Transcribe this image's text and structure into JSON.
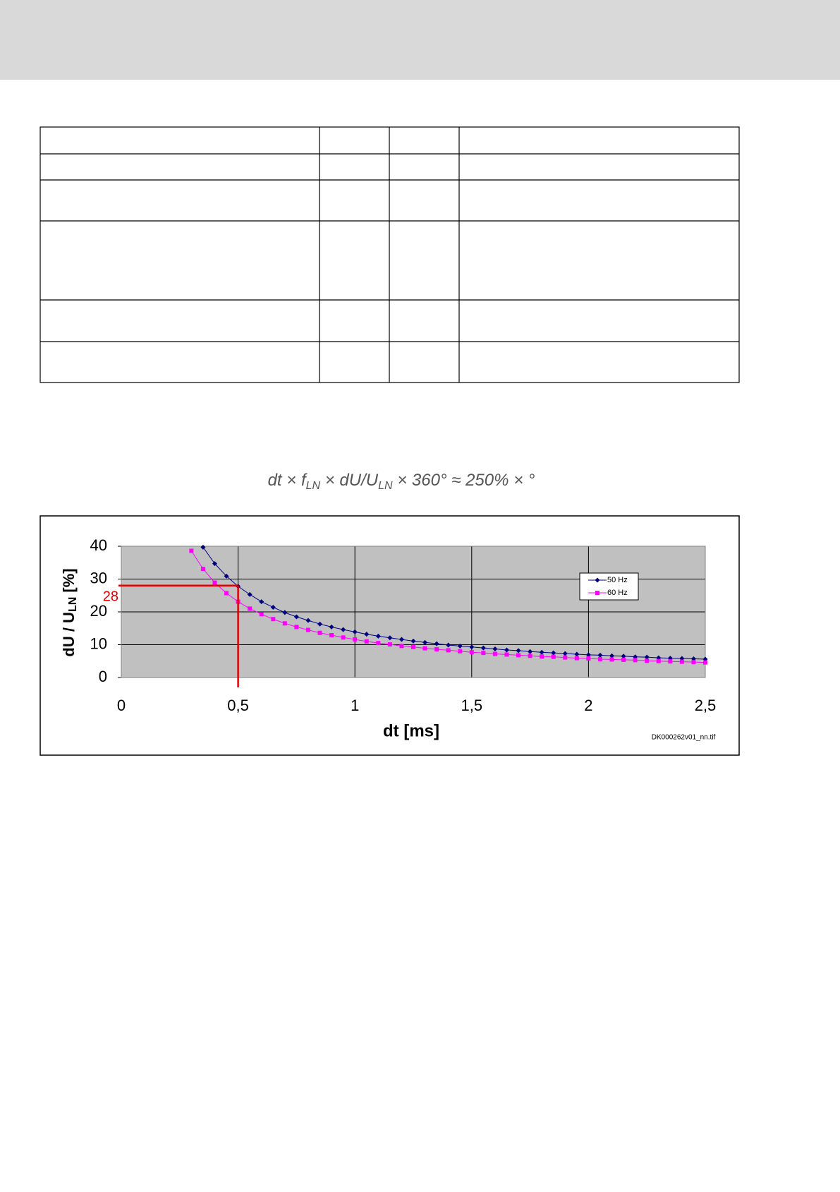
{
  "formula": {
    "parts": [
      "dt × f",
      "LN",
      " × dU/U",
      "LN",
      " × 360° ≈ 250% × °"
    ]
  },
  "chart_data": {
    "type": "line",
    "ylabel": {
      "main": "dU / U",
      "sub": "LN",
      "unit": " [%]"
    },
    "xlabel": "dt [ms]",
    "credit": "DK000262v01_nn.tif",
    "xlim": [
      0,
      2.5
    ],
    "ylim": [
      0,
      40
    ],
    "xticks": [
      0,
      {
        "value": 0.5,
        "label": "0,5"
      },
      1,
      {
        "value": 1.5,
        "label": "1,5"
      },
      2,
      {
        "value": 2.5,
        "label": "2,5"
      }
    ],
    "yticks": [
      0,
      10,
      20,
      30,
      40
    ],
    "grid": true,
    "legend": "upper right",
    "background": "#c0c0c0",
    "marker": {
      "x": 0.5,
      "y": 28,
      "color": "#e00000"
    },
    "series": [
      {
        "name": "50 Hz",
        "color": "#000080",
        "x": [
          0.35,
          0.4,
          0.45,
          0.5,
          0.55,
          0.6,
          0.65,
          0.7,
          0.75,
          0.8,
          0.85,
          0.9,
          0.95,
          1.0,
          1.05,
          1.1,
          1.15,
          1.2,
          1.25,
          1.3,
          1.35,
          1.4,
          1.45,
          1.5,
          1.55,
          1.6,
          1.65,
          1.7,
          1.75,
          1.8,
          1.85,
          1.9,
          1.95,
          2.0,
          2.05,
          2.1,
          2.15,
          2.2,
          2.25,
          2.3,
          2.35,
          2.4,
          2.45,
          2.5
        ],
        "values": [
          39.7,
          34.7,
          30.9,
          27.8,
          25.3,
          23.1,
          21.4,
          19.8,
          18.5,
          17.4,
          16.3,
          15.4,
          14.6,
          13.9,
          13.2,
          12.6,
          12.1,
          11.6,
          11.1,
          10.7,
          10.3,
          9.9,
          9.6,
          9.3,
          9.0,
          8.7,
          8.4,
          8.2,
          7.9,
          7.7,
          7.5,
          7.3,
          7.1,
          6.9,
          6.8,
          6.6,
          6.5,
          6.3,
          6.2,
          6.0,
          5.9,
          5.8,
          5.7,
          5.6
        ]
      },
      {
        "name": "60 Hz",
        "color": "#ff00ff",
        "x": [
          0.3,
          0.35,
          0.4,
          0.45,
          0.5,
          0.55,
          0.6,
          0.65,
          0.7,
          0.75,
          0.8,
          0.85,
          0.9,
          0.95,
          1.0,
          1.05,
          1.1,
          1.15,
          1.2,
          1.25,
          1.3,
          1.35,
          1.4,
          1.45,
          1.5,
          1.55,
          1.6,
          1.65,
          1.7,
          1.75,
          1.8,
          1.85,
          1.9,
          1.95,
          2.0,
          2.05,
          2.1,
          2.15,
          2.2,
          2.25,
          2.3,
          2.35,
          2.4,
          2.45,
          2.5
        ],
        "values": [
          38.6,
          33.1,
          28.9,
          25.7,
          23.1,
          21.0,
          19.3,
          17.8,
          16.5,
          15.4,
          14.5,
          13.6,
          12.9,
          12.2,
          11.6,
          11.0,
          10.5,
          10.1,
          9.6,
          9.3,
          8.9,
          8.6,
          8.3,
          8.0,
          7.7,
          7.5,
          7.2,
          7.0,
          6.8,
          6.6,
          6.4,
          6.3,
          6.1,
          5.9,
          5.8,
          5.6,
          5.5,
          5.4,
          5.3,
          5.1,
          5.0,
          4.9,
          4.8,
          4.7,
          4.6
        ]
      }
    ]
  }
}
